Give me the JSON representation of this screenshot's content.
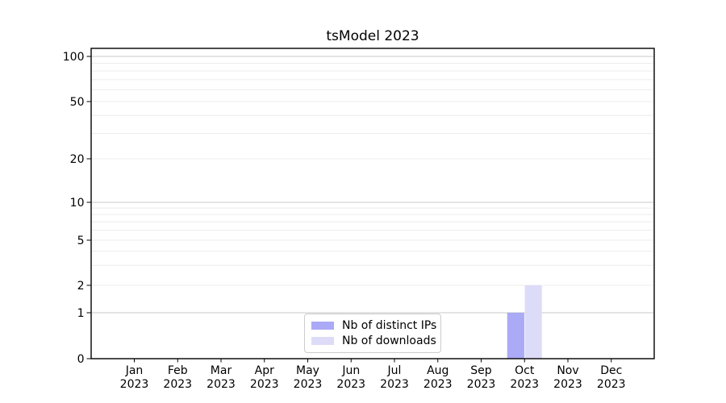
{
  "window": {
    "background": "#ffffff"
  },
  "chart_data": {
    "type": "bar",
    "title": "tsModel 2023",
    "categories": [
      "Jan",
      "Feb",
      "Mar",
      "Apr",
      "May",
      "Jun",
      "Jul",
      "Aug",
      "Sep",
      "Oct",
      "Nov",
      "Dec"
    ],
    "category_year": "2023",
    "series": [
      {
        "name": "Nb of distinct IPs",
        "color": "#abaaf6",
        "values": [
          0,
          0,
          0,
          0,
          0,
          0,
          0,
          0,
          0,
          1,
          0,
          0
        ]
      },
      {
        "name": "Nb of downloads",
        "color": "#dcdcf9",
        "values": [
          0,
          0,
          0,
          0,
          0,
          0,
          0,
          0,
          0,
          2,
          0,
          0
        ]
      }
    ],
    "y_ticks": [
      0,
      1,
      2,
      5,
      10,
      20,
      50,
      100
    ],
    "ylim": [
      0,
      100
    ],
    "y_scale": "log above 1, linear 0-1",
    "grid": {
      "horizontal": true,
      "vertical": false,
      "minor": true
    },
    "legend_position": "inside-bottom-center",
    "colors": {
      "bar_distinct_ips": "#abaaf6",
      "bar_downloads": "#dcdcf9",
      "gridline_major": "#c9c9c9",
      "gridline_minor": "#ececec",
      "axis": "#000000",
      "text": "#000000",
      "legend_border": "#cccccc"
    }
  }
}
